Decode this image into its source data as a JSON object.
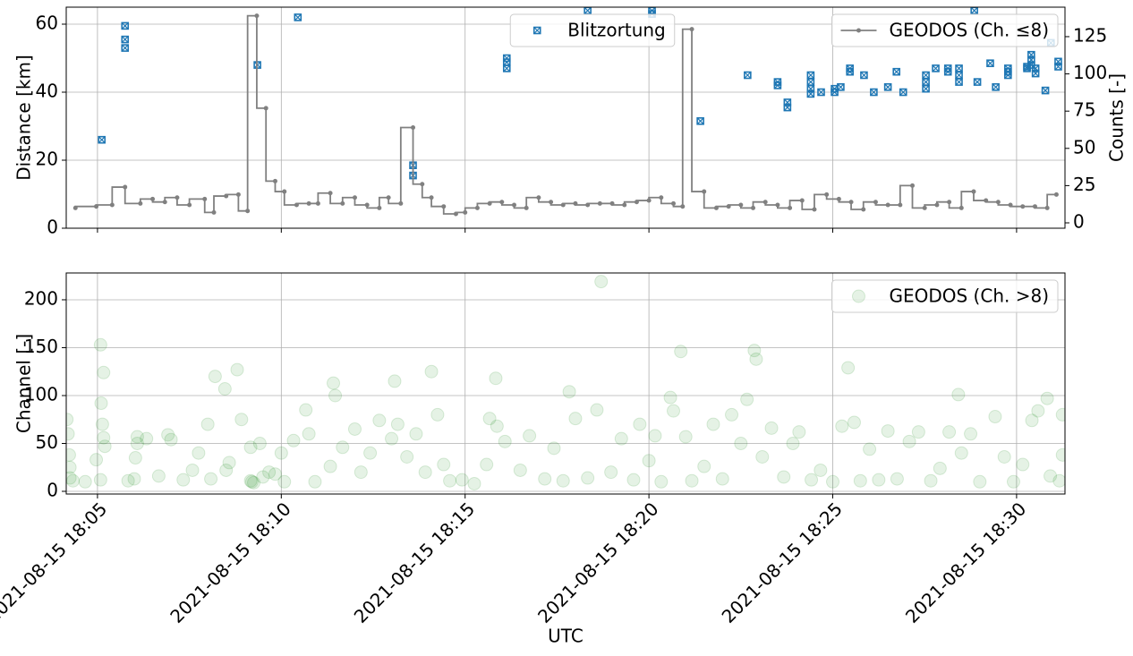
{
  "chart_data": [
    {
      "type": "mixed",
      "ylabel": "Distance [km]",
      "ylabel_color": "#00008b",
      "y2label": "Counts [-]",
      "xlim": [
        "2021-08-15 18:04:09",
        "2021-08-15 18:31:19"
      ],
      "xticks": [
        "2021-08-15 18:05",
        "2021-08-15 18:10",
        "2021-08-15 18:15",
        "2021-08-15 18:20",
        "2021-08-15 18:25",
        "2021-08-15 18:30"
      ],
      "ylim": [
        0,
        65
      ],
      "yticks": [
        0,
        20,
        40,
        60
      ],
      "y2lim": [
        -3.6,
        144.8
      ],
      "y2ticks": [
        0,
        25,
        50,
        75,
        100,
        125
      ],
      "grid": true,
      "series": [
        {
          "name": "Blitzortung",
          "type": "scatter",
          "marker": "square-x",
          "color": "#1f77b4",
          "legend": "upper center",
          "x": [
            "2021-08-15 18:05:07",
            "2021-08-15 18:05:45",
            "2021-08-15 18:05:45",
            "2021-08-15 18:05:45",
            "2021-08-15 18:09:21",
            "2021-08-15 18:10:27",
            "2021-08-15 18:13:35",
            "2021-08-15 18:13:35",
            "2021-08-15 18:16:08",
            "2021-08-15 18:16:08",
            "2021-08-15 18:16:08",
            "2021-08-15 18:18:20",
            "2021-08-15 18:20:05",
            "2021-08-15 18:20:05",
            "2021-08-15 18:21:24",
            "2021-08-15 18:22:41",
            "2021-08-15 18:23:30",
            "2021-08-15 18:23:30",
            "2021-08-15 18:23:46",
            "2021-08-15 18:23:46",
            "2021-08-15 18:24:24",
            "2021-08-15 18:24:24",
            "2021-08-15 18:24:24",
            "2021-08-15 18:24:24",
            "2021-08-15 18:24:41",
            "2021-08-15 18:25:03",
            "2021-08-15 18:25:03",
            "2021-08-15 18:25:13",
            "2021-08-15 18:25:28",
            "2021-08-15 18:25:28",
            "2021-08-15 18:25:51",
            "2021-08-15 18:26:07",
            "2021-08-15 18:26:30",
            "2021-08-15 18:26:44",
            "2021-08-15 18:26:55",
            "2021-08-15 18:27:32",
            "2021-08-15 18:27:32",
            "2021-08-15 18:27:32",
            "2021-08-15 18:27:48",
            "2021-08-15 18:28:08",
            "2021-08-15 18:28:08",
            "2021-08-15 18:28:26",
            "2021-08-15 18:28:26",
            "2021-08-15 18:28:26",
            "2021-08-15 18:28:51",
            "2021-08-15 18:28:56",
            "2021-08-15 18:29:17",
            "2021-08-15 18:29:26",
            "2021-08-15 18:29:46",
            "2021-08-15 18:29:46",
            "2021-08-15 18:29:46",
            "2021-08-15 18:30:17",
            "2021-08-15 18:30:17",
            "2021-08-15 18:30:24",
            "2021-08-15 18:30:24",
            "2021-08-15 18:30:24",
            "2021-08-15 18:30:31",
            "2021-08-15 18:30:31",
            "2021-08-15 18:30:47",
            "2021-08-15 18:30:56",
            "2021-08-15 18:31:08",
            "2021-08-15 18:31:08"
          ],
          "values": [
            26,
            59.5,
            55.5,
            53,
            48,
            62,
            18.5,
            15.5,
            50,
            48.8,
            47,
            64,
            64,
            63,
            31.5,
            45,
            43,
            42,
            37,
            35.5,
            45,
            43,
            41,
            39.5,
            40,
            41,
            40,
            41.5,
            47,
            46,
            45,
            40,
            41.5,
            46,
            40,
            45,
            43,
            41,
            47,
            47,
            46,
            47,
            45,
            43,
            64,
            43,
            48.5,
            41.5,
            47,
            46,
            45,
            47.5,
            47,
            51,
            49.5,
            48,
            47,
            45.5,
            40.5,
            54.5,
            49,
            47.5
          ]
        },
        {
          "name": "GEODOS (Ch. ≤8)",
          "type": "step",
          "axis": "y2",
          "color": "#808080",
          "legend": "upper right",
          "x": [
            "2021-08-15 18:04:24",
            "2021-08-15 18:04:58",
            "2021-08-15 18:05:24",
            "2021-08-15 18:05:45",
            "2021-08-15 18:06:10",
            "2021-08-15 18:06:30",
            "2021-08-15 18:06:50",
            "2021-08-15 18:07:10",
            "2021-08-15 18:07:30",
            "2021-08-15 18:07:55",
            "2021-08-15 18:08:10",
            "2021-08-15 18:08:30",
            "2021-08-15 18:08:50",
            "2021-08-15 18:09:05",
            "2021-08-15 18:09:20",
            "2021-08-15 18:09:35",
            "2021-08-15 18:09:50",
            "2021-08-15 18:10:05",
            "2021-08-15 18:10:25",
            "2021-08-15 18:10:45",
            "2021-08-15 18:11:00",
            "2021-08-15 18:11:20",
            "2021-08-15 18:11:40",
            "2021-08-15 18:12:00",
            "2021-08-15 18:12:20",
            "2021-08-15 18:12:40",
            "2021-08-15 18:12:55",
            "2021-08-15 18:13:15",
            "2021-08-15 18:13:35",
            "2021-08-15 18:13:50",
            "2021-08-15 18:14:05",
            "2021-08-15 18:14:25",
            "2021-08-15 18:14:45",
            "2021-08-15 18:15:00",
            "2021-08-15 18:15:20",
            "2021-08-15 18:15:40",
            "2021-08-15 18:16:00",
            "2021-08-15 18:16:20",
            "2021-08-15 18:16:40",
            "2021-08-15 18:17:00",
            "2021-08-15 18:17:20",
            "2021-08-15 18:17:40",
            "2021-08-15 18:18:00",
            "2021-08-15 18:18:20",
            "2021-08-15 18:18:40",
            "2021-08-15 18:19:00",
            "2021-08-15 18:19:20",
            "2021-08-15 18:19:40",
            "2021-08-15 18:20:00",
            "2021-08-15 18:20:20",
            "2021-08-15 18:20:40",
            "2021-08-15 18:20:55",
            "2021-08-15 18:21:10",
            "2021-08-15 18:21:30",
            "2021-08-15 18:21:50",
            "2021-08-15 18:22:10",
            "2021-08-15 18:22:30",
            "2021-08-15 18:22:50",
            "2021-08-15 18:23:10",
            "2021-08-15 18:23:30",
            "2021-08-15 18:23:50",
            "2021-08-15 18:24:10",
            "2021-08-15 18:24:30",
            "2021-08-15 18:24:50",
            "2021-08-15 18:25:10",
            "2021-08-15 18:25:30",
            "2021-08-15 18:25:50",
            "2021-08-15 18:26:10",
            "2021-08-15 18:26:30",
            "2021-08-15 18:26:50",
            "2021-08-15 18:27:10",
            "2021-08-15 18:27:30",
            "2021-08-15 18:27:50",
            "2021-08-15 18:28:10",
            "2021-08-15 18:28:30",
            "2021-08-15 18:28:50",
            "2021-08-15 18:29:10",
            "2021-08-15 18:29:30",
            "2021-08-15 18:29:50",
            "2021-08-15 18:30:10",
            "2021-08-15 18:30:30",
            "2021-08-15 18:30:50",
            "2021-08-15 18:31:05"
          ],
          "values": [
            10,
            11,
            12,
            24,
            13,
            16,
            14,
            17,
            12,
            16,
            7,
            18,
            19,
            8,
            139,
            77,
            28,
            21,
            12,
            13,
            13,
            20,
            13,
            17,
            12,
            10,
            17,
            13,
            64,
            26,
            17,
            11,
            6,
            7,
            10,
            13,
            14,
            12,
            10,
            17,
            14,
            12,
            13,
            12,
            13,
            13,
            12,
            14,
            15,
            17,
            13,
            11,
            130,
            21,
            10,
            11,
            12,
            10,
            14,
            12,
            10,
            15,
            9,
            19,
            16,
            14,
            9,
            14,
            12,
            12,
            25,
            10,
            12,
            14,
            10,
            21,
            15,
            14,
            12,
            11,
            11,
            10,
            19
          ]
        }
      ]
    },
    {
      "type": "scatter",
      "xlabel": "UTC",
      "ylabel": "Channel [-]",
      "ylabel_color": "#008000",
      "xlim": [
        "2021-08-15 18:04:09",
        "2021-08-15 18:31:19"
      ],
      "xticks": [
        "2021-08-15 18:05",
        "2021-08-15 18:10",
        "2021-08-15 18:15",
        "2021-08-15 18:20",
        "2021-08-15 18:25",
        "2021-08-15 18:30"
      ],
      "ylim": [
        -2.8,
        228
      ],
      "yticks": [
        0,
        50,
        100,
        150,
        200
      ],
      "grid": true,
      "series": [
        {
          "name": "GEODOS (Ch. >8)",
          "color": "#008000",
          "alpha": 0.1,
          "legend": "upper right",
          "x": [
            "2021-08-15 18:04:10",
            "2021-08-15 18:04:12",
            "2021-08-15 18:04:14",
            "2021-08-15 18:04:15",
            "2021-08-15 18:04:15",
            "2021-08-15 18:04:20",
            "2021-08-15 18:04:40",
            "2021-08-15 18:04:58",
            "2021-08-15 18:05:05",
            "2021-08-15 18:05:06",
            "2021-08-15 18:05:08",
            "2021-08-15 18:05:10",
            "2021-08-15 18:05:10",
            "2021-08-15 18:05:12",
            "2021-08-15 18:05:05",
            "2021-08-15 18:05:50",
            "2021-08-15 18:06:00",
            "2021-08-15 18:06:02",
            "2021-08-15 18:06:05",
            "2021-08-15 18:06:05",
            "2021-08-15 18:06:20",
            "2021-08-15 18:06:40",
            "2021-08-15 18:06:55",
            "2021-08-15 18:07:00",
            "2021-08-15 18:07:20",
            "2021-08-15 18:07:35",
            "2021-08-15 18:07:45",
            "2021-08-15 18:08:00",
            "2021-08-15 18:08:05",
            "2021-08-15 18:08:12",
            "2021-08-15 18:08:28",
            "2021-08-15 18:08:30",
            "2021-08-15 18:08:35",
            "2021-08-15 18:08:48",
            "2021-08-15 18:08:55",
            "2021-08-15 18:09:10",
            "2021-08-15 18:09:10",
            "2021-08-15 18:09:12",
            "2021-08-15 18:09:15",
            "2021-08-15 18:09:25",
            "2021-08-15 18:09:30",
            "2021-08-15 18:09:40",
            "2021-08-15 18:09:50",
            "2021-08-15 18:10:00",
            "2021-08-15 18:10:05",
            "2021-08-15 18:10:20",
            "2021-08-15 18:10:40",
            "2021-08-15 18:10:45",
            "2021-08-15 18:10:55",
            "2021-08-15 18:11:20",
            "2021-08-15 18:11:25",
            "2021-08-15 18:11:28",
            "2021-08-15 18:11:40",
            "2021-08-15 18:12:00",
            "2021-08-15 18:12:10",
            "2021-08-15 18:12:25",
            "2021-08-15 18:12:40",
            "2021-08-15 18:13:00",
            "2021-08-15 18:13:05",
            "2021-08-15 18:13:10",
            "2021-08-15 18:13:25",
            "2021-08-15 18:13:40",
            "2021-08-15 18:13:55",
            "2021-08-15 18:14:05",
            "2021-08-15 18:14:15",
            "2021-08-15 18:14:25",
            "2021-08-15 18:14:35",
            "2021-08-15 18:14:55",
            "2021-08-15 18:15:15",
            "2021-08-15 18:15:35",
            "2021-08-15 18:15:40",
            "2021-08-15 18:15:50",
            "2021-08-15 18:15:52",
            "2021-08-15 18:16:05",
            "2021-08-15 18:16:30",
            "2021-08-15 18:16:45",
            "2021-08-15 18:17:10",
            "2021-08-15 18:17:25",
            "2021-08-15 18:17:40",
            "2021-08-15 18:17:50",
            "2021-08-15 18:18:00",
            "2021-08-15 18:18:20",
            "2021-08-15 18:18:35",
            "2021-08-15 18:18:42",
            "2021-08-15 18:18:58",
            "2021-08-15 18:19:15",
            "2021-08-15 18:19:35",
            "2021-08-15 18:19:45",
            "2021-08-15 18:20:00",
            "2021-08-15 18:20:10",
            "2021-08-15 18:20:20",
            "2021-08-15 18:20:35",
            "2021-08-15 18:20:40",
            "2021-08-15 18:20:52",
            "2021-08-15 18:21:00",
            "2021-08-15 18:21:10",
            "2021-08-15 18:21:30",
            "2021-08-15 18:21:45",
            "2021-08-15 18:22:00",
            "2021-08-15 18:22:15",
            "2021-08-15 18:22:30",
            "2021-08-15 18:22:40",
            "2021-08-15 18:22:52",
            "2021-08-15 18:22:55",
            "2021-08-15 18:23:05",
            "2021-08-15 18:23:20",
            "2021-08-15 18:23:40",
            "2021-08-15 18:23:55",
            "2021-08-15 18:24:05",
            "2021-08-15 18:24:25",
            "2021-08-15 18:24:40",
            "2021-08-15 18:25:00",
            "2021-08-15 18:25:15",
            "2021-08-15 18:25:25",
            "2021-08-15 18:25:35",
            "2021-08-15 18:25:45",
            "2021-08-15 18:26:00",
            "2021-08-15 18:26:15",
            "2021-08-15 18:26:30",
            "2021-08-15 18:26:45",
            "2021-08-15 18:27:05",
            "2021-08-15 18:27:20",
            "2021-08-15 18:27:40",
            "2021-08-15 18:27:55",
            "2021-08-15 18:28:10",
            "2021-08-15 18:28:25",
            "2021-08-15 18:28:30",
            "2021-08-15 18:28:45",
            "2021-08-15 18:29:00",
            "2021-08-15 18:29:25",
            "2021-08-15 18:29:40",
            "2021-08-15 18:29:55",
            "2021-08-15 18:30:10",
            "2021-08-15 18:30:25",
            "2021-08-15 18:30:35",
            "2021-08-15 18:30:50",
            "2021-08-15 18:30:55",
            "2021-08-15 18:31:10",
            "2021-08-15 18:31:15",
            "2021-08-15 18:31:15"
          ],
          "values": [
            75,
            60,
            38,
            25,
            14,
            11,
            10,
            33,
            153,
            92,
            70,
            124,
            56,
            47,
            12,
            11,
            13,
            35,
            57,
            50,
            55,
            16,
            59,
            54,
            12,
            22,
            40,
            70,
            13,
            120,
            107,
            22,
            30,
            127,
            75,
            46,
            11,
            10,
            9,
            50,
            15,
            20,
            18,
            40,
            10,
            53,
            85,
            60,
            10,
            26,
            113,
            100,
            46,
            65,
            20,
            40,
            74,
            55,
            115,
            70,
            36,
            60,
            20,
            125,
            80,
            28,
            11,
            12,
            8,
            28,
            76,
            118,
            68,
            52,
            22,
            58,
            13,
            45,
            11,
            104,
            76,
            14,
            85,
            219,
            20,
            55,
            12,
            70,
            32,
            58,
            10,
            98,
            84,
            146,
            57,
            11,
            26,
            70,
            13,
            80,
            50,
            96,
            147,
            138,
            36,
            66,
            15,
            50,
            62,
            12,
            22,
            10,
            68,
            129,
            72,
            11,
            44,
            12,
            63,
            13,
            52,
            62,
            11,
            24,
            62,
            101,
            40,
            60,
            10,
            78,
            36,
            10,
            28,
            74,
            84,
            97,
            16,
            11,
            80,
            38
          ]
        }
      ]
    }
  ]
}
